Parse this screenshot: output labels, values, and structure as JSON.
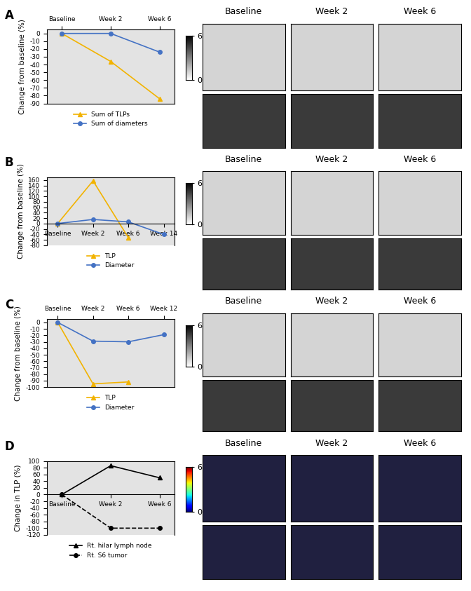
{
  "chart_data": [
    {
      "type": "line",
      "panel": "A",
      "ylabel": "Change from baseline (%)",
      "categories": [
        "Baseline",
        "Week 2",
        "Week 6"
      ],
      "series": [
        {
          "name": "Sum of TLPs",
          "color": "#f2b300",
          "marker": "^",
          "line_style": "solid",
          "values": [
            0,
            -36,
            -84
          ]
        },
        {
          "name": "Sum of diameters",
          "color": "#4472c4",
          "marker": "o",
          "line_style": "solid",
          "values": [
            0,
            0,
            -24
          ]
        }
      ],
      "ylim": [
        -90,
        5
      ],
      "yticks": [
        -90,
        -80,
        -70,
        -60,
        -50,
        -40,
        -30,
        -20,
        -10,
        0
      ],
      "legend": "lower center",
      "images": {
        "columns": [
          "Baseline",
          "Week 2",
          "Week 6"
        ],
        "colorbar_ticks": [
          0,
          6
        ]
      }
    },
    {
      "type": "line",
      "panel": "B",
      "ylabel": "Change from baseline (%)",
      "categories": [
        "Baseline",
        "Week 2",
        "Week 6",
        "Week 14"
      ],
      "series": [
        {
          "name": "TLP",
          "color": "#f2b300",
          "marker": "^",
          "line_style": "solid",
          "values": [
            0,
            157,
            -52,
            null
          ]
        },
        {
          "name": "Diameter",
          "color": "#4472c4",
          "marker": "o",
          "line_style": "solid",
          "values": [
            0,
            15,
            6,
            -40
          ]
        }
      ],
      "ylim": [
        -80,
        170
      ],
      "yticks": [
        -80,
        -60,
        -40,
        -20,
        0,
        20,
        40,
        60,
        80,
        100,
        120,
        140,
        160
      ],
      "legend": "lower center",
      "images": {
        "columns": [
          "Baseline",
          "Week 2",
          "Week 6"
        ],
        "colorbar_ticks": [
          0,
          6
        ]
      }
    },
    {
      "type": "line",
      "panel": "C",
      "ylabel": "Change from baseline (%)",
      "categories": [
        "Baseline",
        "Week 2",
        "Week 6",
        "Week 12"
      ],
      "series": [
        {
          "name": "TLP",
          "color": "#f2b300",
          "marker": "^",
          "line_style": "solid",
          "values": [
            0,
            -95,
            -92,
            null
          ]
        },
        {
          "name": "Diameter",
          "color": "#4472c4",
          "marker": "o",
          "line_style": "solid",
          "values": [
            0,
            -29,
            -30,
            -19
          ]
        }
      ],
      "ylim": [
        -100,
        5
      ],
      "yticks": [
        -100,
        -90,
        -80,
        -70,
        -60,
        -50,
        -40,
        -30,
        -20,
        -10,
        0
      ],
      "legend": "lower center",
      "images": {
        "columns": [
          "Baseline",
          "Week 2",
          "Week 6"
        ],
        "colorbar_ticks": [
          0,
          6
        ]
      }
    },
    {
      "type": "line",
      "panel": "D",
      "ylabel": "Change in TLP (%)",
      "categories": [
        "Baseline",
        "Week 2",
        "Week 6"
      ],
      "series": [
        {
          "name": "Rt. hilar lymph node",
          "color": "#000000",
          "marker": "^",
          "line_style": "solid",
          "values": [
            0,
            86,
            50
          ]
        },
        {
          "name": "Rt. S6 tumor",
          "color": "#000000",
          "marker": "o",
          "line_style": "dashed",
          "values": [
            0,
            -100,
            -100
          ]
        }
      ],
      "ylim": [
        -120,
        100
      ],
      "yticks": [
        -120,
        -100,
        -80,
        -60,
        -40,
        -20,
        0,
        20,
        40,
        60,
        80,
        100
      ],
      "legend": "lower center",
      "images": {
        "columns": [
          "Baseline",
          "Week 2",
          "Week 6"
        ],
        "colorbar_ticks": [
          0,
          6
        ]
      }
    }
  ]
}
